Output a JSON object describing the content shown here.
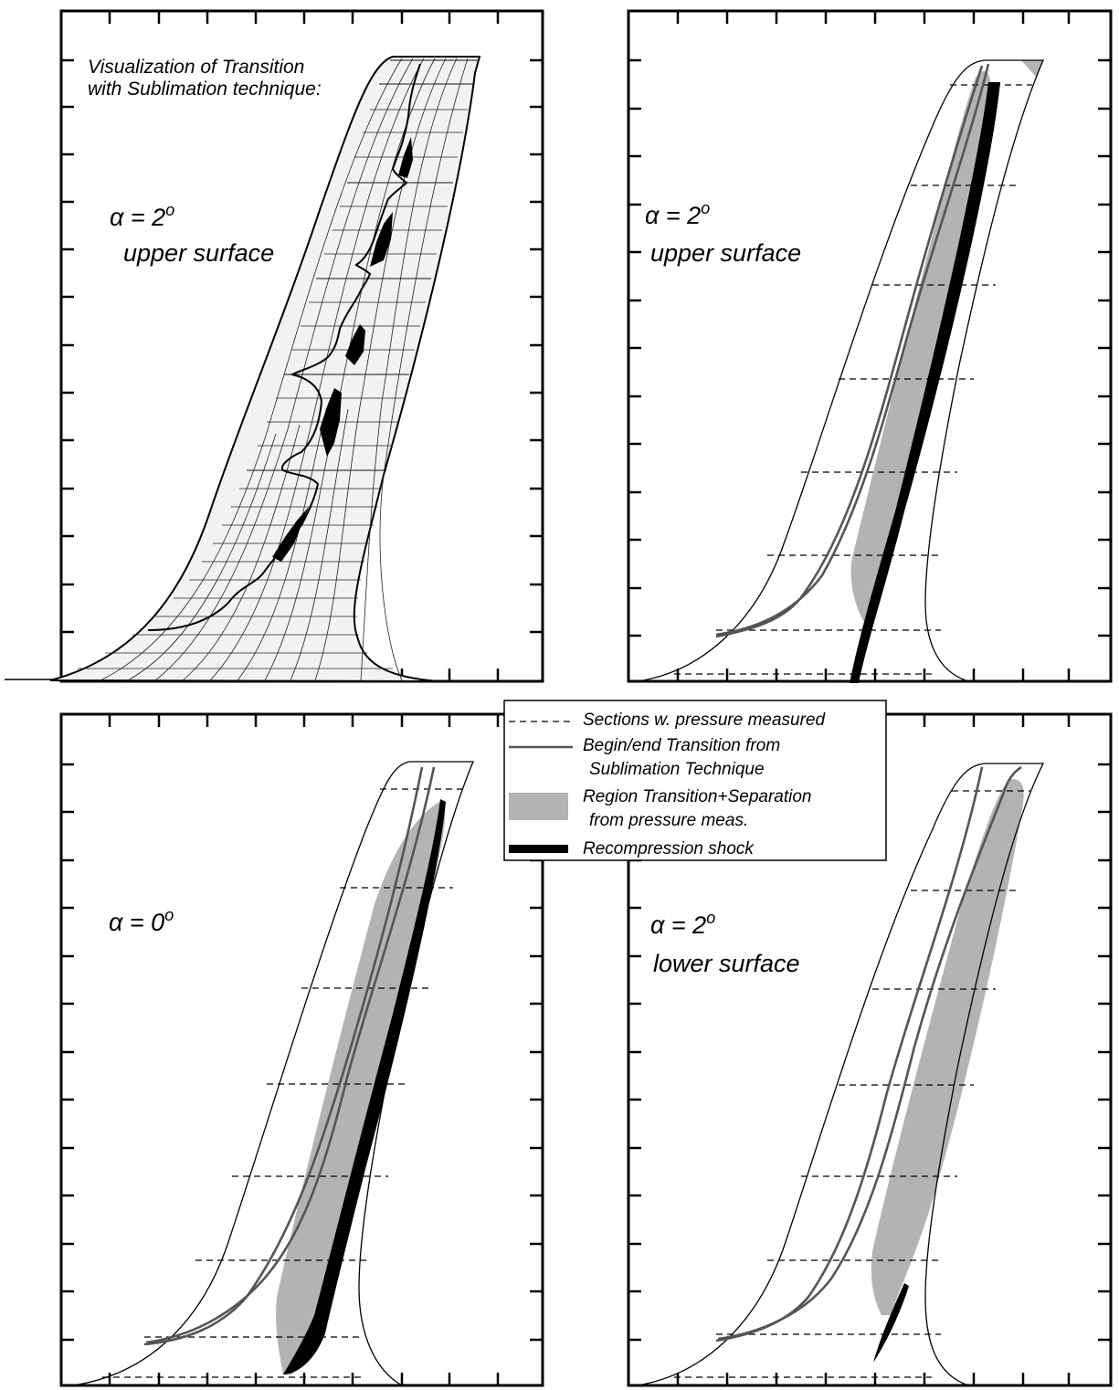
{
  "panels": {
    "top_left": {
      "caption_line1": "Visualization of Transition",
      "caption_line2": "with Sublimation technique:",
      "alpha_prefix": "α = ",
      "alpha_value": "2",
      "alpha_unit": "o",
      "surface": "upper surface"
    },
    "top_right": {
      "alpha_prefix": "α = ",
      "alpha_value": "2",
      "alpha_unit": "o",
      "surface": "upper surface"
    },
    "bottom_left": {
      "alpha_prefix": "α = ",
      "alpha_value": "0",
      "alpha_unit": "o"
    },
    "bottom_right": {
      "alpha_prefix": "α = ",
      "alpha_value": "2",
      "alpha_unit": "o",
      "surface": "lower surface"
    }
  },
  "legend": {
    "sections": "Sections w. pressure measured",
    "transition_line1": "Begin/end Transition from",
    "transition_line2": "Sublimation Technique",
    "region_line1": "Region Transition+Separation",
    "region_line2": "from pressure meas.",
    "shock": "Recompression shock"
  },
  "colors": {
    "region_fill": "#b3b3b3",
    "transition_line": "#555555",
    "shock": "#000000"
  }
}
